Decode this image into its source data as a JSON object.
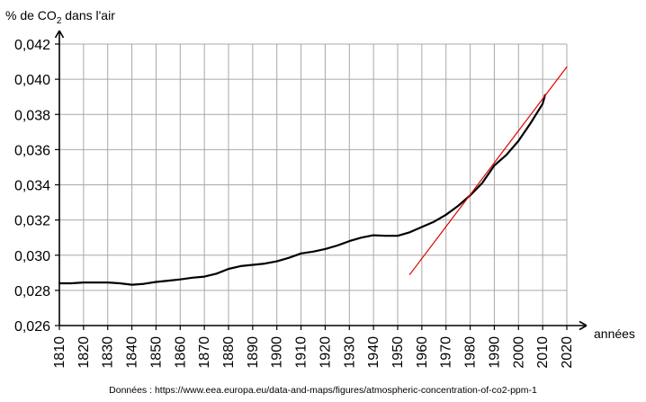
{
  "chart_data": {
    "type": "line",
    "ylabel": "% de CO₂ dans l'air",
    "xlabel": "années",
    "xlim": [
      1810,
      2020
    ],
    "ylim": [
      0.026,
      0.042
    ],
    "x_ticks": [
      1810,
      1820,
      1830,
      1840,
      1850,
      1860,
      1870,
      1880,
      1890,
      1900,
      1910,
      1920,
      1930,
      1940,
      1950,
      1960,
      1970,
      1980,
      1990,
      2000,
      2010,
      2020
    ],
    "y_ticks": [
      0.026,
      0.028,
      0.03,
      0.032,
      0.034,
      0.036,
      0.038,
      0.04,
      0.042
    ],
    "y_tick_labels": [
      "0,026",
      "0,028",
      "0,030",
      "0,032",
      "0,034",
      "0,036",
      "0,038",
      "0,040",
      "0,042"
    ],
    "grid": true,
    "series": [
      {
        "color": "#000000",
        "x": [
          1810,
          1815,
          1820,
          1825,
          1830,
          1835,
          1840,
          1845,
          1850,
          1855,
          1860,
          1865,
          1870,
          1875,
          1880,
          1885,
          1890,
          1895,
          1900,
          1905,
          1910,
          1915,
          1920,
          1925,
          1930,
          1935,
          1940,
          1945,
          1950,
          1955,
          1960,
          1965,
          1970,
          1975,
          1980,
          1985,
          1990,
          1995,
          2000,
          2005,
          2010,
          2011
        ],
        "y": [
          0.0284,
          0.0284,
          0.02845,
          0.02845,
          0.02845,
          0.0284,
          0.02832,
          0.02837,
          0.02848,
          0.02855,
          0.02862,
          0.02872,
          0.02878,
          0.02895,
          0.02922,
          0.02938,
          0.02945,
          0.02952,
          0.02965,
          0.02985,
          0.0301,
          0.0302,
          0.03035,
          0.03055,
          0.0308,
          0.031,
          0.03113,
          0.0311,
          0.0311,
          0.0313,
          0.0316,
          0.0319,
          0.0323,
          0.0328,
          0.0334,
          0.0341,
          0.0351,
          0.0357,
          0.0365,
          0.0375,
          0.0386,
          0.0391
        ]
      },
      {
        "color": "#e00000",
        "x": [
          1955,
          2020
        ],
        "y": [
          0.0289,
          0.0407
        ]
      }
    ]
  },
  "source_text": "Données : https://www.eea.europa.eu/data-and-maps/figures/atmospheric-concentration-of-co2-ppm-1"
}
